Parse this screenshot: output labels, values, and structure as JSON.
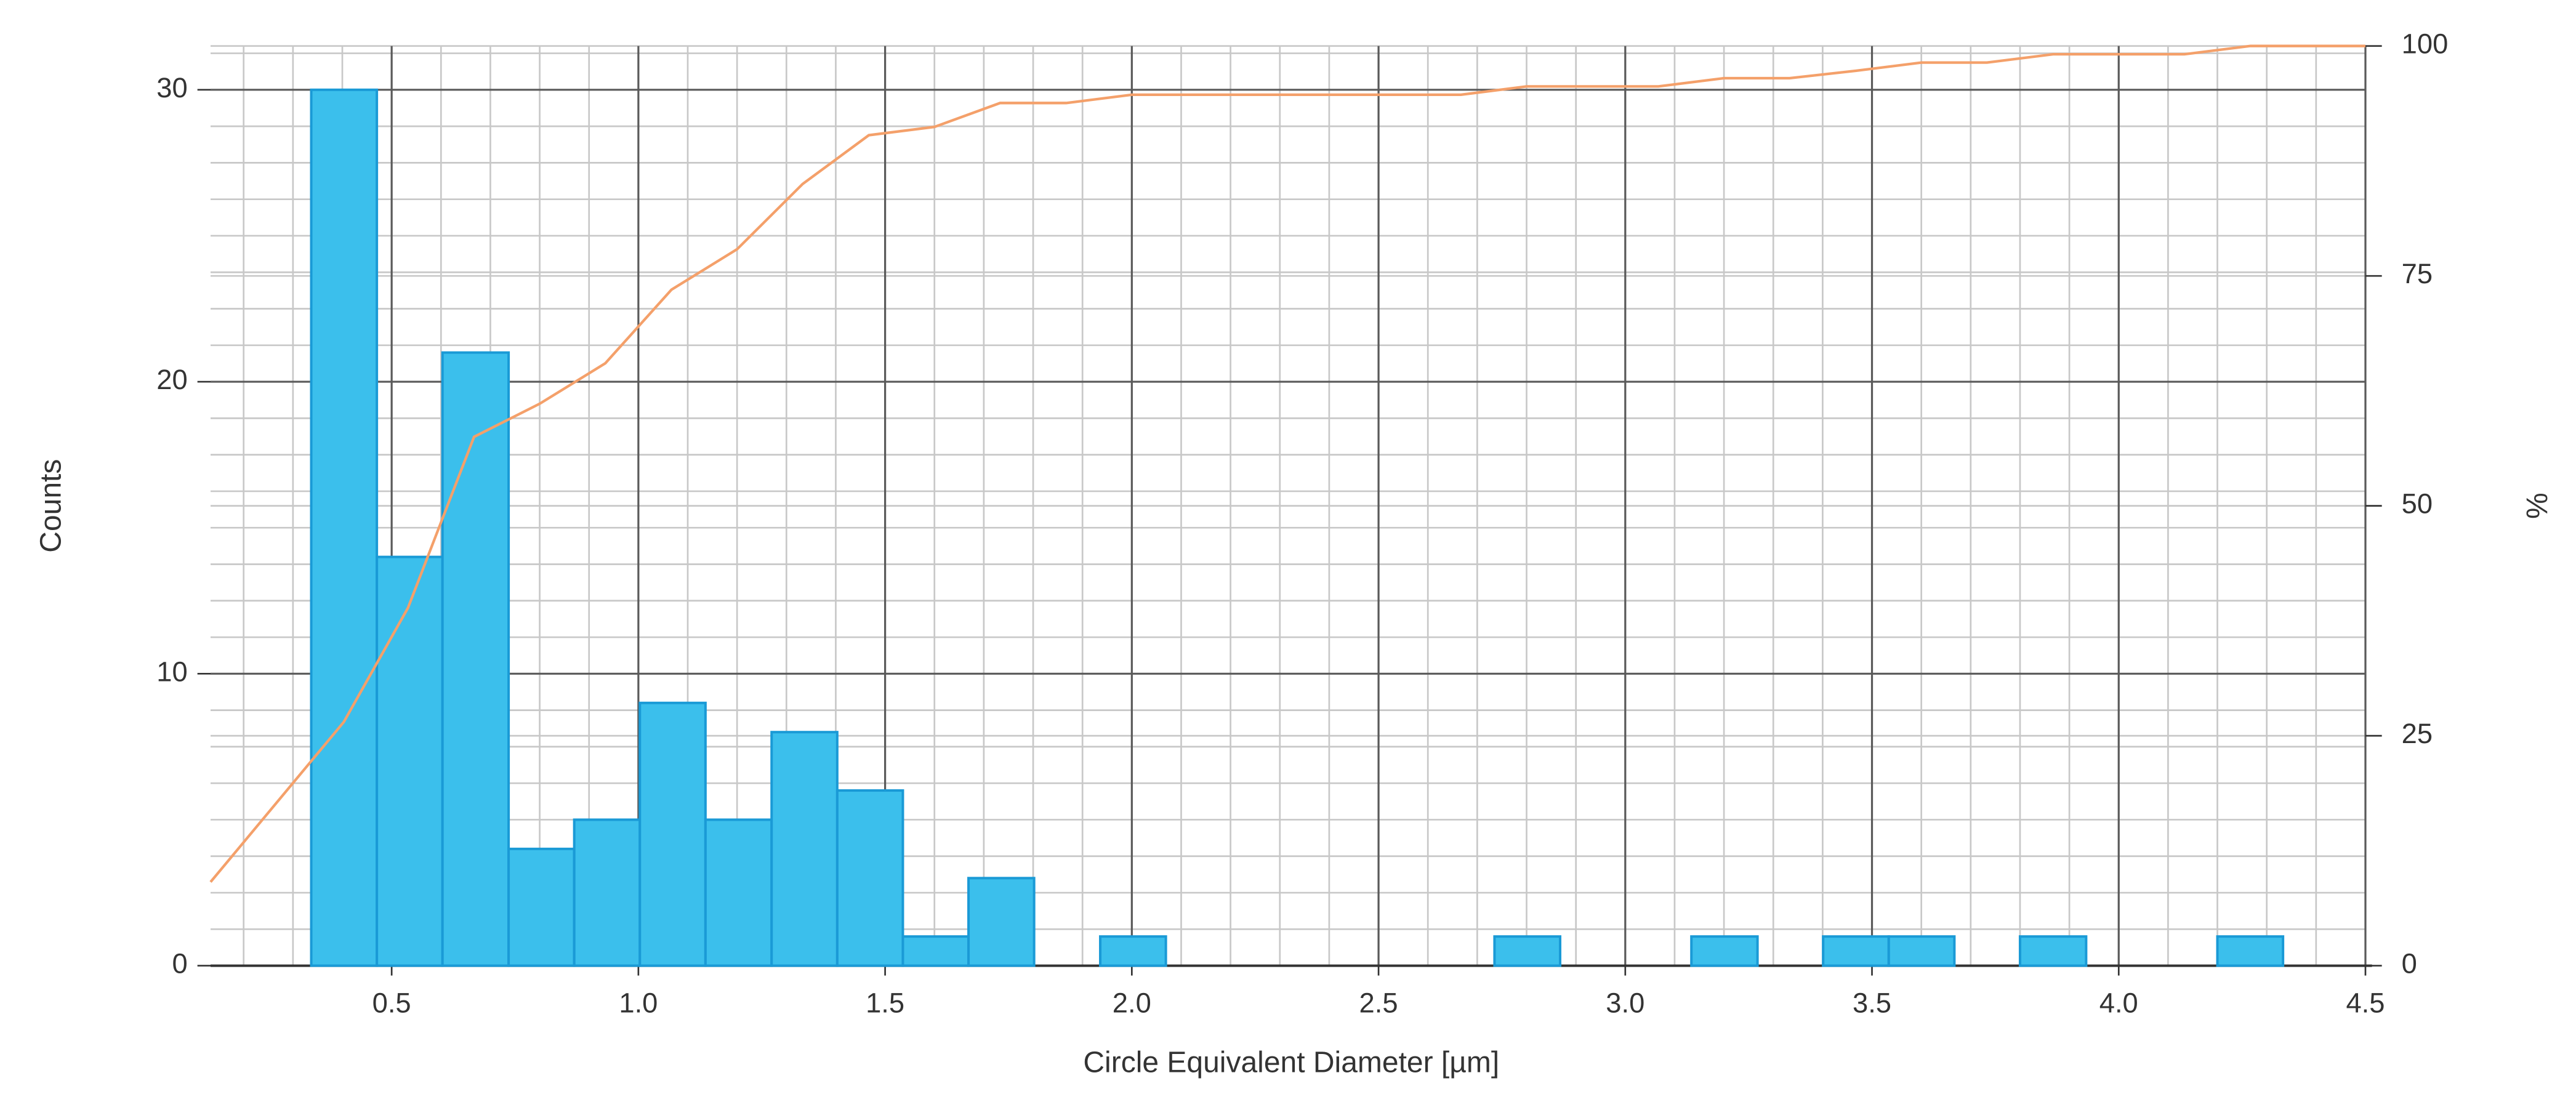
{
  "chart_data": {
    "type": "histogram",
    "bins": [
      0.337,
      0.47,
      0.603,
      0.737,
      0.87,
      1.003,
      1.136,
      1.27,
      1.403,
      1.536,
      1.669,
      1.802,
      1.936,
      2.069,
      2.202,
      2.335,
      2.468,
      2.602,
      2.735,
      2.868,
      3.001,
      3.134,
      3.268,
      3.401,
      3.534,
      3.667,
      3.8,
      3.934,
      4.067,
      4.2,
      4.333
    ],
    "counts": [
      30,
      14,
      21,
      4,
      5,
      9,
      5,
      8,
      6,
      1,
      3,
      0,
      1,
      0,
      0,
      0,
      0,
      0,
      1,
      0,
      0,
      1,
      0,
      1,
      1,
      0,
      1,
      0,
      0,
      1
    ],
    "color": "#3bbfec",
    "edge_color": "#1a9ad6",
    "cumulative": {
      "axis": "y2",
      "color": "#f4a06a",
      "x": [
        0.133,
        0.403,
        0.533,
        0.667,
        0.8,
        0.933,
        1.067,
        1.2,
        1.333,
        1.467,
        1.6,
        1.733,
        1.867,
        2.0,
        2.667,
        2.8,
        3.067,
        3.2,
        3.333,
        3.467,
        3.6,
        3.733,
        3.867,
        4.133,
        4.267,
        4.5
      ],
      "values": [
        9.1,
        26.5,
        38.9,
        57.5,
        61.1,
        65.5,
        73.5,
        77.9,
        85.0,
        90.3,
        91.2,
        93.8,
        93.8,
        94.7,
        94.7,
        95.6,
        95.6,
        96.5,
        96.5,
        97.3,
        98.2,
        98.2,
        99.1,
        99.1,
        100,
        100
      ]
    },
    "x_label": "Circle Equivalent Diameter [µm]",
    "y_label": "Counts",
    "y2_label": "%",
    "xlim": [
      0.133,
      4.5
    ],
    "xticks": [
      0.5,
      {
        "value": 1.0,
        "label": "1.0"
      },
      1.5,
      {
        "value": 2.0,
        "label": "2.0"
      },
      2.5,
      {
        "value": 3.0,
        "label": "3.0"
      },
      3.5,
      {
        "value": 4.0,
        "label": "4.0"
      },
      4.5
    ],
    "ylim": [
      0,
      31.5
    ],
    "yticks": [
      0,
      10,
      20,
      30
    ],
    "y2lim": [
      0,
      100
    ],
    "y2ticks": [
      0,
      25,
      50,
      75,
      100
    ],
    "grid": true,
    "x_minor_step": 0.1,
    "y_minor_step": 1.25
  }
}
